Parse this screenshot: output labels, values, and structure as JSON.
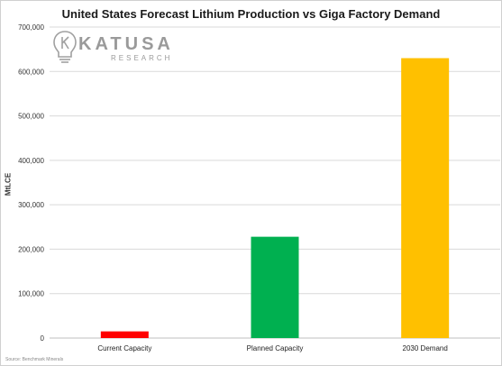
{
  "chart_data": {
    "type": "bar",
    "title": "United States Forecast Lithium Production vs Giga Factory Demand",
    "ylabel": "MtLCE",
    "xlabel": "",
    "categories": [
      "Current Capacity",
      "Planned Capacity",
      "2030 Demand"
    ],
    "values": [
      15000,
      228000,
      630000
    ],
    "colors": [
      "#ff0000",
      "#00b050",
      "#ffc000"
    ],
    "ylim": [
      0,
      700000
    ],
    "yticks": [
      "0",
      "100,000",
      "200,000",
      "300,000",
      "400,000",
      "500,000",
      "600,000",
      "700,000"
    ],
    "grid": true,
    "legend": "none"
  },
  "logo": {
    "word": "KATUSA",
    "sub": "RESEARCH",
    "icon": "lightbulb-k-icon"
  },
  "source": "Source: Benchmark Minerals"
}
